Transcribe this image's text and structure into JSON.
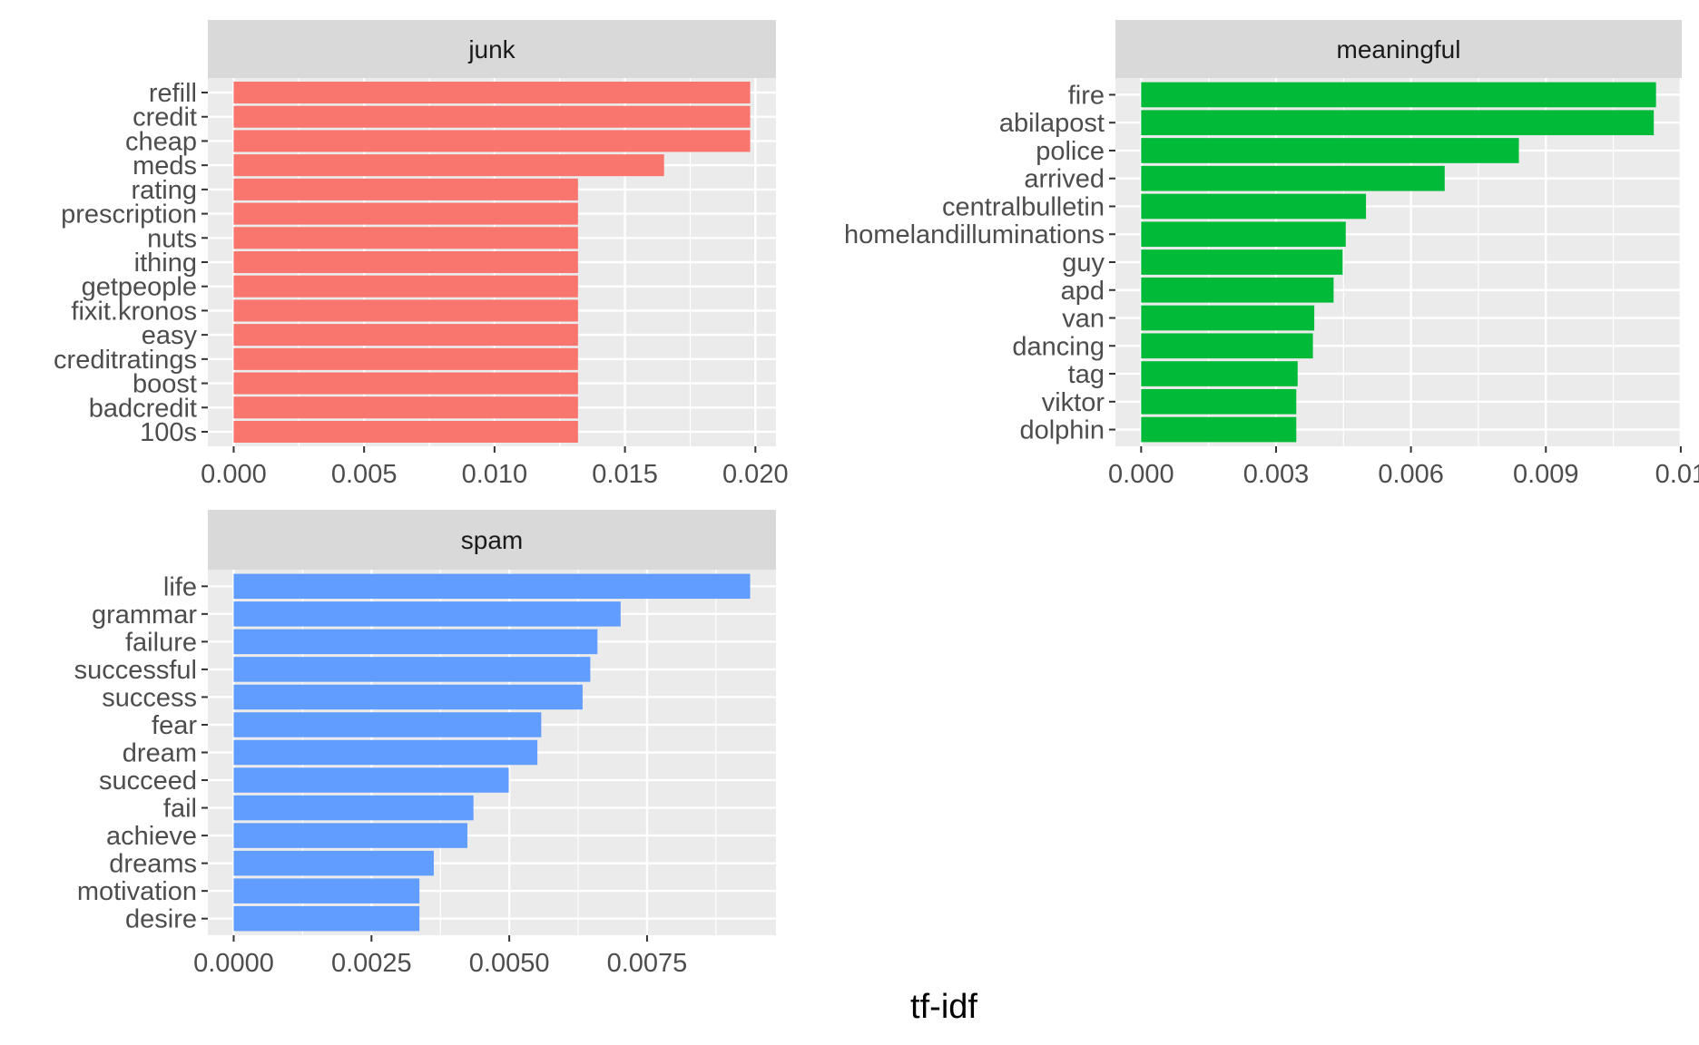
{
  "chart_data": {
    "type": "bar",
    "orientation": "horizontal",
    "xlabel": "tf-idf",
    "ylabel": "",
    "grid": true,
    "legend": "none",
    "panels": [
      {
        "title": "junk",
        "color": "#F8766D",
        "categories": [
          "refill",
          "credit",
          "cheap",
          "meds",
          "rating",
          "prescription",
          "nuts",
          "ithing",
          "getpeople",
          "fixit.kronos",
          "easy",
          "creditratings",
          "boost",
          "badcredit",
          "100s"
        ],
        "values": [
          0.0198,
          0.0198,
          0.0198,
          0.0165,
          0.0132,
          0.0132,
          0.0132,
          0.0132,
          0.0132,
          0.0132,
          0.0132,
          0.0132,
          0.0132,
          0.0132,
          0.0132
        ],
        "xlim": [
          -0.00099,
          0.02079
        ],
        "x_ticks": [
          0,
          0.005,
          0.01,
          0.015,
          0.02
        ],
        "x_tick_labels": [
          "0.000",
          "0.005",
          "0.010",
          "0.015",
          "0.020"
        ]
      },
      {
        "title": "meaningful",
        "color": "#00BA38",
        "categories": [
          "fire",
          "abilapost",
          "police",
          "arrived",
          "centralbulletin",
          "homelandilluminations",
          "guy",
          "apd",
          "van",
          "dancing",
          "tag",
          "viktor",
          "dolphin"
        ],
        "values": [
          0.01145,
          0.0114,
          0.0084,
          0.00675,
          0.005,
          0.00455,
          0.00448,
          0.00428,
          0.00385,
          0.00382,
          0.00348,
          0.00345,
          0.00345
        ],
        "xlim": [
          -0.000572,
          0.012022
        ],
        "x_ticks": [
          0,
          0.003,
          0.006,
          0.009,
          0.012
        ],
        "x_tick_labels": [
          "0.000",
          "0.003",
          "0.006",
          "0.009",
          "0.01"
        ]
      },
      {
        "title": "spam",
        "color": "#619CFF",
        "categories": [
          "life",
          "grammar",
          "failure",
          "successful",
          "success",
          "fear",
          "dream",
          "succeed",
          "fail",
          "achieve",
          "dreams",
          "motivation",
          "desire"
        ],
        "values": [
          0.00937,
          0.00702,
          0.0066,
          0.00647,
          0.00633,
          0.00558,
          0.00551,
          0.00499,
          0.00435,
          0.00424,
          0.00363,
          0.00337,
          0.00337
        ],
        "xlim": [
          -0.000469,
          0.009839
        ],
        "x_ticks": [
          0,
          0.0025,
          0.005,
          0.0075
        ],
        "x_tick_labels": [
          "0.0000",
          "0.0025",
          "0.0050",
          "0.0075"
        ]
      }
    ]
  }
}
